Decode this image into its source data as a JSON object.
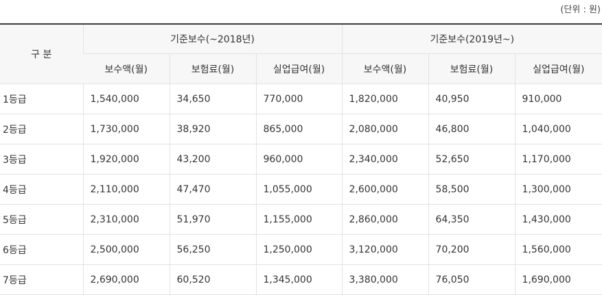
{
  "unit_note": "(단위 : 원)",
  "headers": {
    "category": "구 분",
    "group_2018": "기준보수(~2018년)",
    "group_2019": "기준보수(2019년~)",
    "sub": [
      "보수액(월)",
      "보험료(월)",
      "실업급여(월)",
      "보수액(월)",
      "보험료(월)",
      "실업급여(월)"
    ]
  },
  "rows": [
    [
      "1등급",
      "1,540,000",
      "34,650",
      "770,000",
      "1,820,000",
      "40,950",
      "910,000"
    ],
    [
      "2등급",
      "1,730,000",
      "38,920",
      "865,000",
      "2,080,000",
      "46,800",
      "1,040,000"
    ],
    [
      "3등급",
      "1,920,000",
      "43,200",
      "960,000",
      "2,340,000",
      "52,650",
      "1,170,000"
    ],
    [
      "4등급",
      "2,110,000",
      "47,470",
      "1,055,000",
      "2,600,000",
      "58,500",
      "1,300,000"
    ],
    [
      "5등급",
      "2,310,000",
      "51,970",
      "1,155,000",
      "2,860,000",
      "64,350",
      "1,430,000"
    ],
    [
      "6등급",
      "2,500,000",
      "56,250",
      "1,250,000",
      "3,120,000",
      "70,200",
      "1,560,000"
    ],
    [
      "7등급",
      "2,690,000",
      "60,520",
      "1,345,000",
      "3,380,000",
      "76,050",
      "1,690,000"
    ]
  ]
}
